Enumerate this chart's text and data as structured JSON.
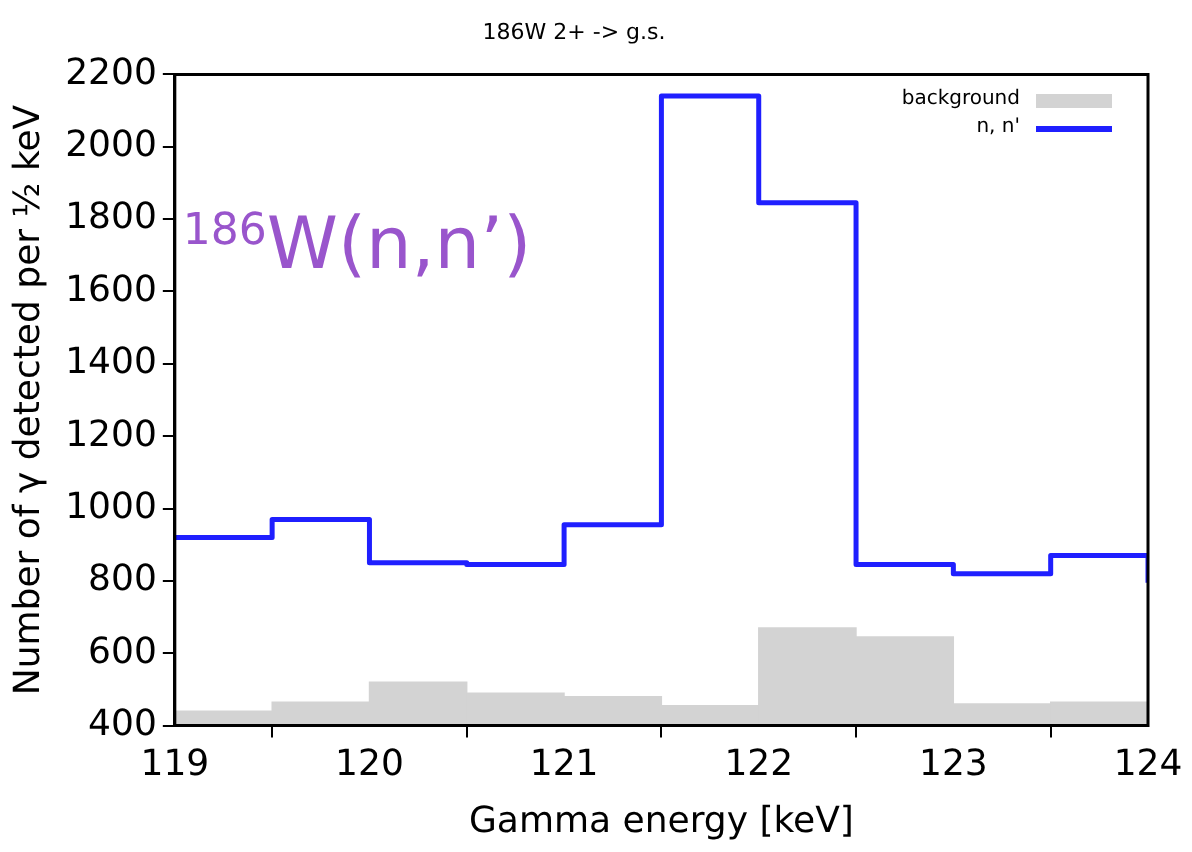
{
  "chart_data": {
    "type": "histogram",
    "title": "186W 2+ -> g.s.",
    "xlabel": "Gamma energy [keV]",
    "ylabel": "Number of γ detected per ½ keV",
    "bins": [
      119,
      119.5,
      120,
      120.5,
      121,
      121.5,
      122,
      122.5,
      123,
      123.5,
      124
    ],
    "series": [
      {
        "name": "background",
        "color": "#d3d3d3",
        "values": [
          440,
          465,
          520,
          490,
          480,
          455,
          670,
          645,
          460,
          465
        ]
      },
      {
        "name": "n, n'",
        "type": "step",
        "color": "#1f1fff",
        "x": [
          119,
          119.5,
          120,
          120.5,
          121,
          121.5,
          122,
          122.5,
          123,
          123.5,
          124
        ],
        "values": [
          920,
          970,
          850,
          845,
          955,
          2140,
          1845,
          845,
          820,
          870,
          795
        ]
      }
    ],
    "xlim": [
      119,
      124
    ],
    "xticks": [
      119,
      120,
      121,
      122,
      123,
      124
    ],
    "ylim": [
      400,
      2200
    ],
    "yticks": [
      400,
      600,
      800,
      1000,
      1200,
      1400,
      1600,
      1800,
      2000,
      2200
    ],
    "grid": false,
    "legend": "top right",
    "annotations": [
      "$^{186}$W(n,n’)"
    ]
  }
}
